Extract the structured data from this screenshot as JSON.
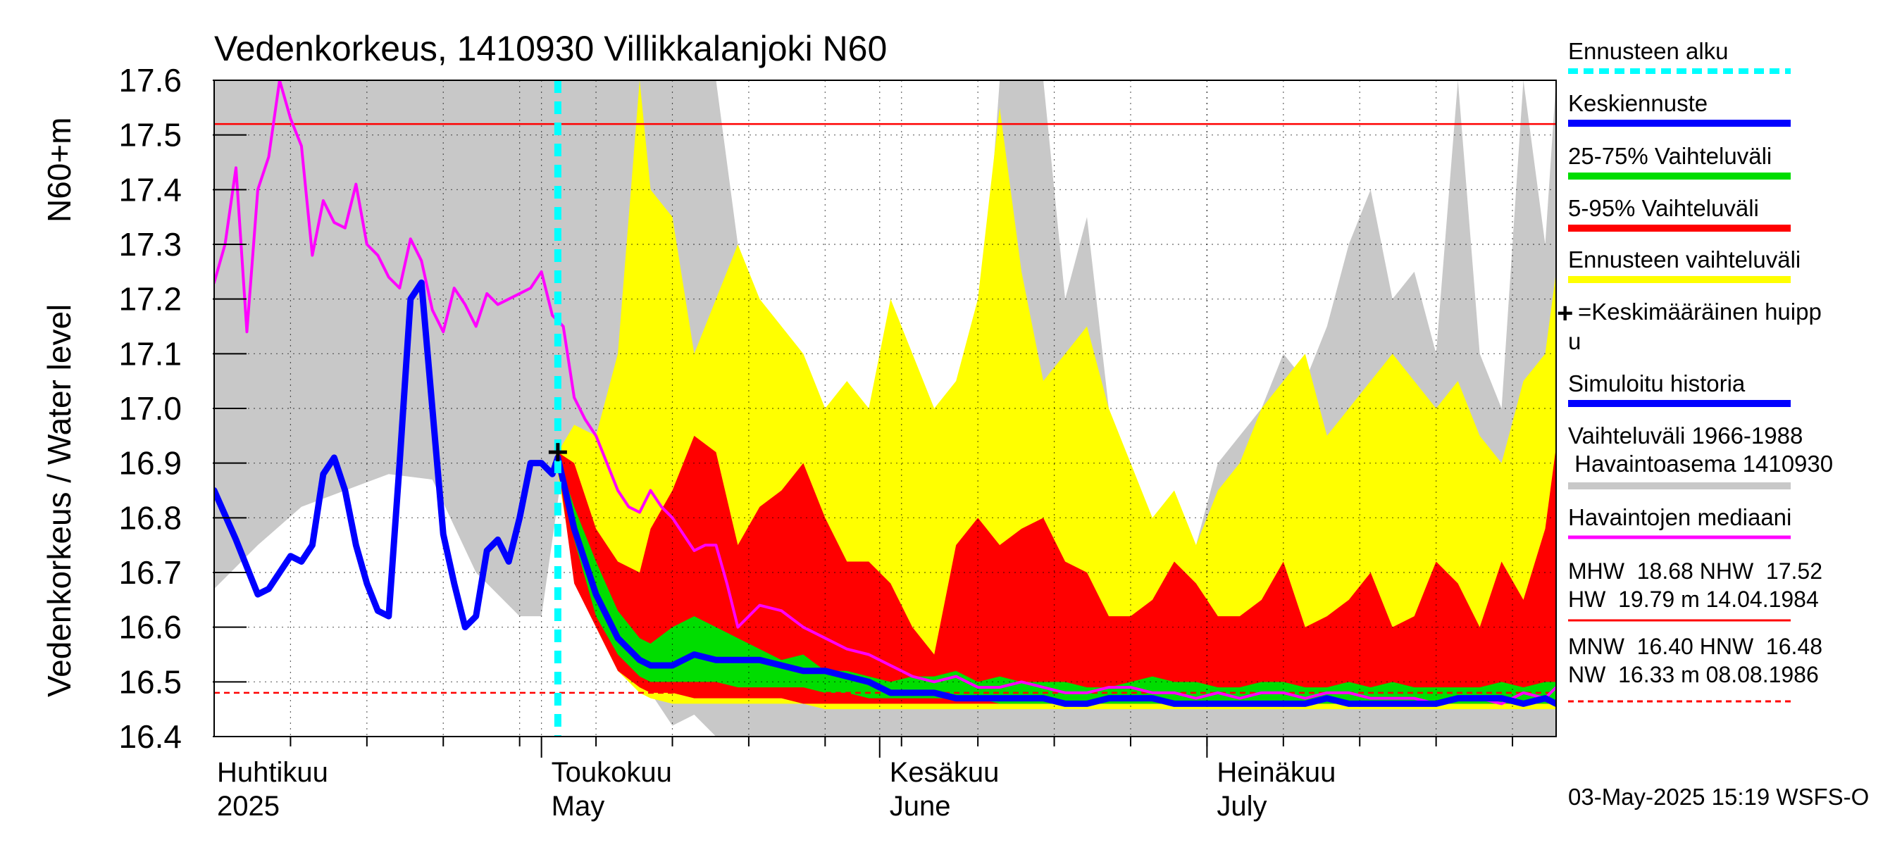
{
  "chart_data": {
    "type": "line",
    "title": "Vedenkorkeus, 1410930 Villikkalanjoki N60",
    "ylabel_fi": "Vedenkorkeus / Water level",
    "ylabel_unit": "N60+m",
    "ylim": [
      16.4,
      17.6
    ],
    "yticks": [
      "17.6",
      "17.5",
      "17.4",
      "17.3",
      "17.2",
      "17.1",
      "17.0",
      "16.9",
      "16.8",
      "16.7",
      "16.6",
      "16.5",
      "16.4"
    ],
    "xlim_day": [
      0,
      123
    ],
    "month_labels": [
      {
        "fi": "Huhtikuu",
        "en": "2025",
        "day": 0
      },
      {
        "fi": "Toukokuu",
        "en": "May",
        "day": 30
      },
      {
        "fi": "Kesäkuu",
        "en": "June",
        "day": 61
      },
      {
        "fi": "Heinäkuu",
        "en": "July",
        "day": 91
      }
    ],
    "forecast_start_day": 31.5,
    "reference_lines": {
      "NHW": 17.52,
      "HNW": 16.48
    },
    "mean_peak": {
      "day": 31.5,
      "value": 16.92
    },
    "series": [
      {
        "name": "Vaihteluväli 1966-1988 Havaintoasema 1410930",
        "kind": "band",
        "color": "#d3d3d3",
        "x": [
          0,
          4,
          8,
          12,
          16,
          20,
          24,
          28,
          30,
          32,
          34,
          36,
          38,
          40,
          42,
          44,
          46,
          48,
          50,
          52,
          54,
          56,
          58,
          60,
          62,
          64,
          66,
          68,
          70,
          72,
          74,
          76,
          78,
          80,
          82,
          84,
          86,
          88,
          90,
          92,
          94,
          96,
          98,
          100,
          102,
          104,
          106,
          108,
          110,
          112,
          114,
          116,
          118,
          120,
          122,
          123
        ],
        "upper": [
          17.6,
          17.6,
          17.6,
          17.6,
          17.6,
          17.6,
          17.6,
          17.6,
          17.6,
          17.6,
          17.6,
          17.6,
          17.6,
          17.6,
          17.6,
          17.6,
          17.6,
          17.3,
          17.1,
          16.95,
          16.9,
          16.85,
          16.8,
          16.85,
          17.0,
          17.05,
          16.9,
          16.95,
          17.05,
          17.6,
          17.6,
          17.6,
          17.2,
          17.35,
          17.0,
          16.75,
          16.8,
          16.7,
          16.75,
          16.9,
          16.95,
          17.0,
          17.1,
          17.05,
          17.15,
          17.3,
          17.4,
          17.2,
          17.25,
          17.1,
          17.6,
          17.1,
          17.0,
          17.6,
          17.3,
          17.6
        ],
        "lower": [
          16.67,
          16.75,
          16.82,
          16.85,
          16.88,
          16.87,
          16.7,
          16.62,
          16.62,
          16.9,
          16.85,
          16.7,
          16.55,
          16.48,
          16.42,
          16.44,
          16.4,
          16.4,
          16.4,
          16.4,
          16.4,
          16.4,
          16.4,
          16.4,
          16.4,
          16.4,
          16.4,
          16.4,
          16.4,
          16.4,
          16.4,
          16.4,
          16.4,
          16.4,
          16.4,
          16.4,
          16.4,
          16.4,
          16.4,
          16.4,
          16.4,
          16.4,
          16.4,
          16.4,
          16.4,
          16.4,
          16.4,
          16.4,
          16.4,
          16.4,
          16.4,
          16.4,
          16.4,
          16.4,
          16.4,
          16.4
        ]
      },
      {
        "name": "Ennusteen vaihteluväli",
        "kind": "band",
        "color": "#ffff00",
        "x": [
          31.5,
          33,
          35,
          37,
          39,
          40,
          42,
          44,
          46,
          48,
          50,
          52,
          54,
          56,
          58,
          60,
          62,
          64,
          66,
          68,
          70,
          72,
          74,
          76,
          78,
          80,
          82,
          84,
          86,
          88,
          90,
          92,
          94,
          96,
          98,
          100,
          102,
          104,
          106,
          108,
          110,
          112,
          114,
          116,
          118,
          120,
          122,
          123
        ],
        "upper": [
          16.92,
          16.97,
          16.95,
          17.1,
          17.6,
          17.4,
          17.35,
          17.1,
          17.2,
          17.3,
          17.2,
          17.15,
          17.1,
          17.0,
          17.05,
          17.0,
          17.2,
          17.1,
          17.0,
          17.05,
          17.2,
          17.55,
          17.25,
          17.05,
          17.1,
          17.15,
          17.0,
          16.9,
          16.8,
          16.85,
          16.75,
          16.85,
          16.9,
          17.0,
          17.05,
          17.1,
          16.95,
          17.0,
          17.05,
          17.1,
          17.05,
          17.0,
          17.05,
          16.95,
          16.9,
          17.05,
          17.1,
          17.25
        ],
        "lower": [
          16.88,
          16.7,
          16.6,
          16.52,
          16.48,
          16.47,
          16.46,
          16.46,
          16.46,
          16.46,
          16.46,
          16.46,
          16.46,
          16.45,
          16.45,
          16.45,
          16.45,
          16.45,
          16.45,
          16.45,
          16.45,
          16.45,
          16.45,
          16.45,
          16.45,
          16.45,
          16.45,
          16.45,
          16.45,
          16.45,
          16.45,
          16.45,
          16.45,
          16.45,
          16.45,
          16.45,
          16.45,
          16.45,
          16.45,
          16.45,
          16.45,
          16.45,
          16.45,
          16.45,
          16.45,
          16.45,
          16.45,
          16.45
        ]
      },
      {
        "name": "5-95% Vaihteluväli",
        "kind": "band",
        "color": "#ff0000",
        "x": [
          31.5,
          33,
          35,
          37,
          39,
          40,
          42,
          44,
          46,
          48,
          50,
          52,
          54,
          56,
          58,
          60,
          62,
          64,
          66,
          68,
          70,
          72,
          74,
          76,
          78,
          80,
          82,
          84,
          86,
          88,
          90,
          92,
          94,
          96,
          98,
          100,
          102,
          104,
          106,
          108,
          110,
          112,
          114,
          116,
          118,
          120,
          122,
          123
        ],
        "upper": [
          16.92,
          16.9,
          16.78,
          16.72,
          16.7,
          16.78,
          16.85,
          16.95,
          16.92,
          16.75,
          16.82,
          16.85,
          16.9,
          16.8,
          16.72,
          16.72,
          16.68,
          16.6,
          16.55,
          16.75,
          16.8,
          16.75,
          16.78,
          16.8,
          16.72,
          16.7,
          16.62,
          16.62,
          16.65,
          16.72,
          16.68,
          16.62,
          16.62,
          16.65,
          16.72,
          16.6,
          16.62,
          16.65,
          16.7,
          16.6,
          16.62,
          16.72,
          16.68,
          16.6,
          16.72,
          16.65,
          16.78,
          16.93
        ],
        "lower": [
          16.9,
          16.68,
          16.6,
          16.52,
          16.49,
          16.48,
          16.48,
          16.47,
          16.47,
          16.47,
          16.47,
          16.47,
          16.46,
          16.46,
          16.46,
          16.46,
          16.46,
          16.46,
          16.46,
          16.46,
          16.46,
          16.46,
          16.46,
          16.46,
          16.46,
          16.46,
          16.46,
          16.46,
          16.46,
          16.46,
          16.46,
          16.46,
          16.46,
          16.46,
          16.46,
          16.46,
          16.46,
          16.46,
          16.46,
          16.46,
          16.46,
          16.46,
          16.46,
          16.46,
          16.46,
          16.46,
          16.46,
          16.46
        ]
      },
      {
        "name": "25-75% Vaihteluväli",
        "kind": "band",
        "color": "#00ff00",
        "x": [
          31.5,
          33,
          35,
          37,
          39,
          40,
          42,
          44,
          46,
          48,
          50,
          52,
          54,
          56,
          58,
          60,
          62,
          64,
          66,
          68,
          70,
          72,
          74,
          76,
          78,
          80,
          82,
          84,
          86,
          88,
          90,
          92,
          94,
          96,
          98,
          100,
          102,
          104,
          106,
          108,
          110,
          112,
          114,
          116,
          118,
          120,
          122,
          123
        ],
        "upper": [
          16.91,
          16.82,
          16.72,
          16.63,
          16.58,
          16.57,
          16.6,
          16.62,
          16.6,
          16.58,
          16.56,
          16.54,
          16.55,
          16.52,
          16.52,
          16.51,
          16.5,
          16.51,
          16.51,
          16.52,
          16.5,
          16.51,
          16.5,
          16.5,
          16.5,
          16.49,
          16.49,
          16.5,
          16.51,
          16.5,
          16.5,
          16.49,
          16.49,
          16.5,
          16.5,
          16.49,
          16.49,
          16.5,
          16.49,
          16.5,
          16.49,
          16.49,
          16.49,
          16.49,
          16.5,
          16.49,
          16.5,
          16.5
        ],
        "lower": [
          16.9,
          16.76,
          16.62,
          16.55,
          16.51,
          16.5,
          16.5,
          16.5,
          16.5,
          16.49,
          16.49,
          16.49,
          16.49,
          16.48,
          16.48,
          16.47,
          16.47,
          16.47,
          16.47,
          16.47,
          16.47,
          16.46,
          16.46,
          16.46,
          16.46,
          16.46,
          16.46,
          16.46,
          16.46,
          16.46,
          16.46,
          16.46,
          16.46,
          16.46,
          16.46,
          16.46,
          16.46,
          16.46,
          16.46,
          16.46,
          16.46,
          16.46,
          16.46,
          16.46,
          16.46,
          16.46,
          16.46,
          16.46
        ]
      },
      {
        "name": "Keskiennuste",
        "kind": "line",
        "color": "#0000ff",
        "x": [
          31.5,
          33,
          35,
          37,
          39,
          40,
          42,
          44,
          46,
          48,
          50,
          52,
          54,
          56,
          58,
          60,
          62,
          64,
          66,
          68,
          70,
          72,
          74,
          76,
          78,
          80,
          82,
          84,
          86,
          88,
          90,
          92,
          94,
          96,
          98,
          100,
          102,
          104,
          106,
          108,
          110,
          112,
          114,
          116,
          118,
          120,
          122,
          123
        ],
        "values": [
          16.91,
          16.78,
          16.66,
          16.58,
          16.54,
          16.53,
          16.53,
          16.55,
          16.54,
          16.54,
          16.54,
          16.53,
          16.52,
          16.52,
          16.51,
          16.5,
          16.48,
          16.48,
          16.48,
          16.47,
          16.47,
          16.47,
          16.47,
          16.47,
          16.46,
          16.46,
          16.47,
          16.47,
          16.47,
          16.46,
          16.46,
          16.46,
          16.46,
          16.46,
          16.46,
          16.46,
          16.47,
          16.46,
          16.46,
          16.46,
          16.46,
          16.46,
          16.47,
          16.47,
          16.47,
          16.46,
          16.47,
          16.46
        ]
      },
      {
        "name": "Simuloitu historia",
        "kind": "line",
        "color": "#0000ff",
        "x": [
          0,
          2,
          4,
          5,
          6,
          7,
          8,
          9,
          10,
          11,
          12,
          13,
          14,
          15,
          16,
          17,
          18,
          19,
          20,
          21,
          22,
          23,
          24,
          25,
          26,
          27,
          28,
          29,
          30,
          31,
          31.5
        ],
        "values": [
          16.85,
          16.76,
          16.66,
          16.67,
          16.7,
          16.73,
          16.72,
          16.75,
          16.88,
          16.91,
          16.85,
          16.75,
          16.68,
          16.63,
          16.62,
          16.9,
          17.2,
          17.23,
          17.0,
          16.77,
          16.68,
          16.6,
          16.62,
          16.74,
          16.76,
          16.72,
          16.8,
          16.9,
          16.9,
          16.88,
          16.91
        ]
      },
      {
        "name": "Havaintojen mediaani",
        "kind": "line",
        "color": "#ff00ff",
        "x": [
          0,
          1,
          2,
          3,
          4,
          5,
          6,
          7,
          8,
          9,
          10,
          11,
          12,
          13,
          14,
          15,
          16,
          17,
          18,
          19,
          20,
          21,
          22,
          23,
          24,
          25,
          26,
          27,
          28,
          29,
          30,
          31,
          32,
          33,
          34,
          35,
          36,
          37,
          38,
          39,
          40,
          41,
          42,
          43,
          44,
          45,
          46,
          47,
          48,
          50,
          52,
          54,
          56,
          58,
          60,
          62,
          64,
          66,
          68,
          70,
          72,
          74,
          76,
          78,
          80,
          82,
          84,
          86,
          88,
          90,
          92,
          94,
          96,
          98,
          100,
          102,
          104,
          106,
          108,
          110,
          112,
          114,
          116,
          118,
          120,
          122,
          123
        ],
        "values": [
          17.23,
          17.3,
          17.44,
          17.14,
          17.4,
          17.46,
          17.6,
          17.53,
          17.48,
          17.28,
          17.38,
          17.34,
          17.33,
          17.41,
          17.3,
          17.28,
          17.24,
          17.22,
          17.31,
          17.27,
          17.18,
          17.14,
          17.22,
          17.19,
          17.15,
          17.21,
          17.19,
          17.2,
          17.21,
          17.22,
          17.25,
          17.17,
          17.15,
          17.02,
          16.98,
          16.95,
          16.9,
          16.85,
          16.82,
          16.81,
          16.85,
          16.82,
          16.8,
          16.77,
          16.74,
          16.75,
          16.75,
          16.68,
          16.6,
          16.64,
          16.63,
          16.6,
          16.58,
          16.56,
          16.55,
          16.53,
          16.51,
          16.5,
          16.51,
          16.49,
          16.49,
          16.5,
          16.49,
          16.48,
          16.48,
          16.49,
          16.49,
          16.48,
          16.48,
          16.47,
          16.48,
          16.47,
          16.48,
          16.48,
          16.47,
          16.48,
          16.48,
          16.47,
          16.47,
          16.47,
          16.46,
          16.47,
          16.47,
          16.46,
          16.48,
          16.47,
          16.49
        ]
      }
    ]
  },
  "legend": {
    "ennusteen_alku": "Ennusteen alku",
    "keskiennuste": "Keskiennuste",
    "vaihtelu_25_75": "25-75% Vaihteluväli",
    "vaihtelu_5_95": "5-95% Vaihteluväli",
    "ennusteen_vaihteluvali": "Ennusteen vaihteluväli",
    "huippu_line1": "=Keskimääräinen huipp",
    "huippu_line2": "u",
    "simuloitu": "Simuloitu historia",
    "vaihteluvali_line1": "Vaihteluväli 1966-1988",
    "vaihteluvali_line2": " Havaintoasema 1410930",
    "mediaani": "Havaintojen mediaani",
    "stats1": "MHW  18.68 NHW  17.52",
    "stats2": "HW  19.79 m 14.04.1984",
    "stats3": "MNW  16.40 HNW  16.48",
    "stats4": "NW  16.33 m 08.08.1986"
  },
  "colors": {
    "cyan": "#00ffff",
    "blue": "#0000ff",
    "green": "#00dd00",
    "red": "#ff0000",
    "yellow": "#ffff00",
    "gray": "#c8c8c8",
    "magenta": "#ff00ff",
    "nhw_line": "#ff0000"
  },
  "footer": "03-May-2025 15:19 WSFS-O"
}
